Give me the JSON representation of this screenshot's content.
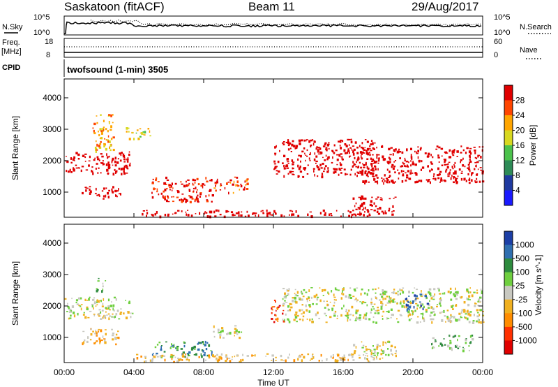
{
  "header": {
    "station": "Saskatoon (fitACF)",
    "beam": "Beam 11",
    "date": "29/Aug/2017"
  },
  "strips": {
    "nsky_label": "N.Sky",
    "nsky_hi": "10^5",
    "nsky_lo": "10^0",
    "nsearch_hi": "10^5",
    "nsearch_lo": "10^0",
    "nsearch_label": "N.Search",
    "freq_label_1": "Freq.",
    "freq_label_2": "[MHz]",
    "freq_hi": "18",
    "freq_lo": "8",
    "nave_hi": "60",
    "nave_lo": "0",
    "nave_label": "Nave",
    "cpid_label": "CPID",
    "cpid_text": "twofsound (1-min) 3505"
  },
  "chart_data": [
    {
      "type": "heatmap",
      "panel": "power",
      "ylabel": "Slant Range [km]",
      "ylim": [
        200,
        4600
      ],
      "yticks": [
        "1000",
        "2000",
        "3000",
        "4000"
      ],
      "colorbar_label": "Power [dB]",
      "colorbar_ticks": [
        "4",
        "8",
        "12",
        "16",
        "20",
        "24",
        "28"
      ],
      "colorbar_colors": [
        "#1a1aff",
        "#1f3aa0",
        "#2e8b57",
        "#4cc24c",
        "#d8d820",
        "#ffa500",
        "#ff4500",
        "#e00000"
      ],
      "scatter_regions": [
        {
          "t0": 0.0,
          "t1": 3.9,
          "r0": 1600,
          "r1": 2300,
          "level": 18
        },
        {
          "t0": 1.0,
          "t1": 3.2,
          "r0": 800,
          "r1": 1200,
          "level": 22
        },
        {
          "t0": 1.6,
          "t1": 2.8,
          "r0": 2300,
          "r1": 3500,
          "level": 5
        },
        {
          "t0": 3.5,
          "t1": 5.0,
          "r0": 2700,
          "r1": 3100,
          "level": 4
        },
        {
          "t0": 5.0,
          "t1": 8.5,
          "r0": 700,
          "r1": 1500,
          "level": 7
        },
        {
          "t0": 8.5,
          "t1": 10.5,
          "r0": 1000,
          "r1": 1500,
          "level": 6
        },
        {
          "t0": 12.0,
          "t1": 18.0,
          "r0": 1500,
          "r1": 2700,
          "level": 19
        },
        {
          "t0": 17.0,
          "t1": 24.0,
          "r0": 1300,
          "r1": 2500,
          "level": 18
        },
        {
          "t0": 16.5,
          "t1": 19.0,
          "r0": 300,
          "r1": 900,
          "level": 20
        },
        {
          "t0": 4.0,
          "t1": 18.0,
          "r0": 250,
          "r1": 450,
          "level": 10
        }
      ]
    },
    {
      "type": "heatmap",
      "panel": "velocity",
      "ylabel": "Slant Range [km]",
      "xlabel": "Time UT",
      "xticks": [
        "00:00",
        "04:00",
        "08:00",
        "12:00",
        "16:00",
        "20:00",
        "00:00"
      ],
      "ylim": [
        200,
        4600
      ],
      "yticks": [
        "1000",
        "2000",
        "3000",
        "4000"
      ],
      "colorbar_label": "Velocity [m s^-1]",
      "colorbar_ticks": [
        "1000",
        "500",
        "100",
        "25",
        "-25",
        "-100",
        "-500",
        "-1000"
      ],
      "colorbar_colors": [
        "#1c3fa6",
        "#2f6fb0",
        "#2e8b3e",
        "#6fcf3f",
        "#c8c8c0",
        "#f0b020",
        "#ff8c00",
        "#ff3000",
        "#e00000"
      ],
      "scatter_regions": [
        {
          "t0": 0.0,
          "t1": 3.9,
          "r0": 1600,
          "r1": 2300,
          "level": 4
        },
        {
          "t0": 1.0,
          "t1": 3.2,
          "r0": 800,
          "r1": 1300,
          "level": 5
        },
        {
          "t0": 1.8,
          "t1": 2.4,
          "r0": 2500,
          "r1": 2900,
          "level": 3
        },
        {
          "t0": 5.0,
          "t1": 8.5,
          "r0": 400,
          "r1": 900,
          "level": 2
        },
        {
          "t0": 8.5,
          "t1": 10.2,
          "r0": 1000,
          "r1": 1400,
          "level": 4
        },
        {
          "t0": 11.8,
          "t1": 12.6,
          "r0": 1500,
          "r1": 2200,
          "level": 7
        },
        {
          "t0": 12.5,
          "t1": 24.0,
          "r0": 1500,
          "r1": 2600,
          "level": 4
        },
        {
          "t0": 19.5,
          "t1": 20.8,
          "r0": 1900,
          "r1": 2400,
          "level": 0
        },
        {
          "t0": 16.5,
          "t1": 19.0,
          "r0": 300,
          "r1": 900,
          "level": 4
        },
        {
          "t0": 4.0,
          "t1": 18.0,
          "r0": 250,
          "r1": 500,
          "level": 5
        },
        {
          "t0": 21.0,
          "t1": 23.5,
          "r0": 600,
          "r1": 1100,
          "level": 3
        }
      ]
    }
  ]
}
